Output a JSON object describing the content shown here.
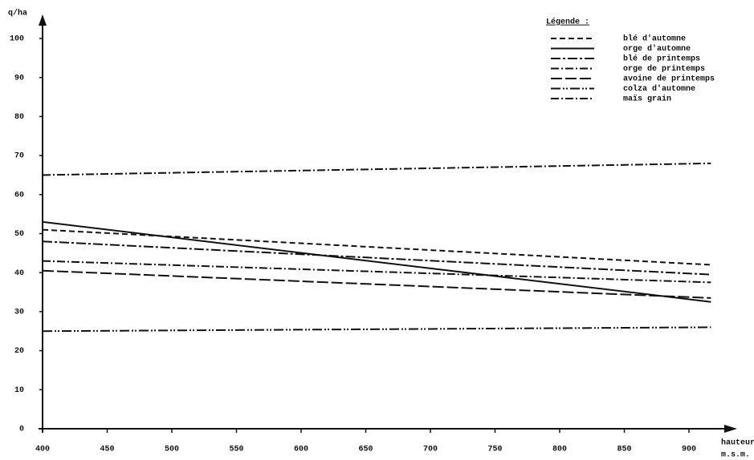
{
  "chart_data": {
    "type": "line",
    "y_label": "q/ha",
    "x_label": [
      "hauteur",
      "m.s.m."
    ],
    "legend_title": "Légende :",
    "legend": "top-right",
    "x": [
      400,
      917
    ],
    "series": [
      {
        "name": "blé d'automne",
        "color": "#111111",
        "dash": "7,4",
        "values": [
          51,
          42
        ]
      },
      {
        "name": "orge d'automne",
        "color": "#111111",
        "dash": "",
        "values": [
          53,
          32.5
        ]
      },
      {
        "name": "blé de printemps",
        "color": "#111111",
        "dash": "12,3,3,3",
        "values": [
          48,
          39.5
        ]
      },
      {
        "name": "orge de printemps",
        "color": "#111111",
        "dash": "10,3,2,3",
        "values": [
          43,
          37.5
        ]
      },
      {
        "name": "avoine de printemps",
        "color": "#111111",
        "dash": "14,4",
        "values": [
          40.5,
          33.5
        ]
      },
      {
        "name": "colza d'automne",
        "color": "#111111",
        "dash": "12,3,2,2,2,3",
        "values": [
          25,
          26
        ]
      },
      {
        "name": "maïs grain",
        "color": "#111111",
        "dash": "10,3,2,3",
        "values": [
          65,
          68
        ]
      }
    ],
    "xlim": [
      400,
      930
    ],
    "xticks": [
      400,
      450,
      500,
      550,
      600,
      650,
      700,
      750,
      800,
      850,
      900
    ],
    "ylim": [
      0,
      100
    ],
    "yticks": [
      0,
      10,
      20,
      30,
      40,
      50,
      60,
      70,
      80,
      90,
      100
    ],
    "grid": false
  }
}
